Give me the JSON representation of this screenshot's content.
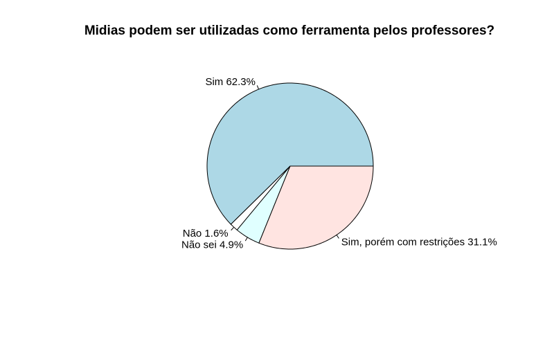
{
  "chart_data": {
    "type": "pie",
    "title": "Midias podem ser utilizadas como ferramenta pelos professores?",
    "slices": [
      {
        "label": "Sim 62.3%",
        "category": "Sim",
        "value": 62.3,
        "color": "#add8e6"
      },
      {
        "label": "Não 1.6%",
        "category": "Não",
        "value": 1.6,
        "color": "#ffffff"
      },
      {
        "label": "Não sei 4.9%",
        "category": "Não sei",
        "value": 4.9,
        "color": "#e0ffff"
      },
      {
        "label": "Sim, porém com restrições 31.1%",
        "category": "Sim, porém com restrições",
        "value": 31.1,
        "color": "#ffe4e1"
      }
    ],
    "start_angle_deg": 0,
    "direction": "counterclockwise",
    "legend": "none"
  }
}
